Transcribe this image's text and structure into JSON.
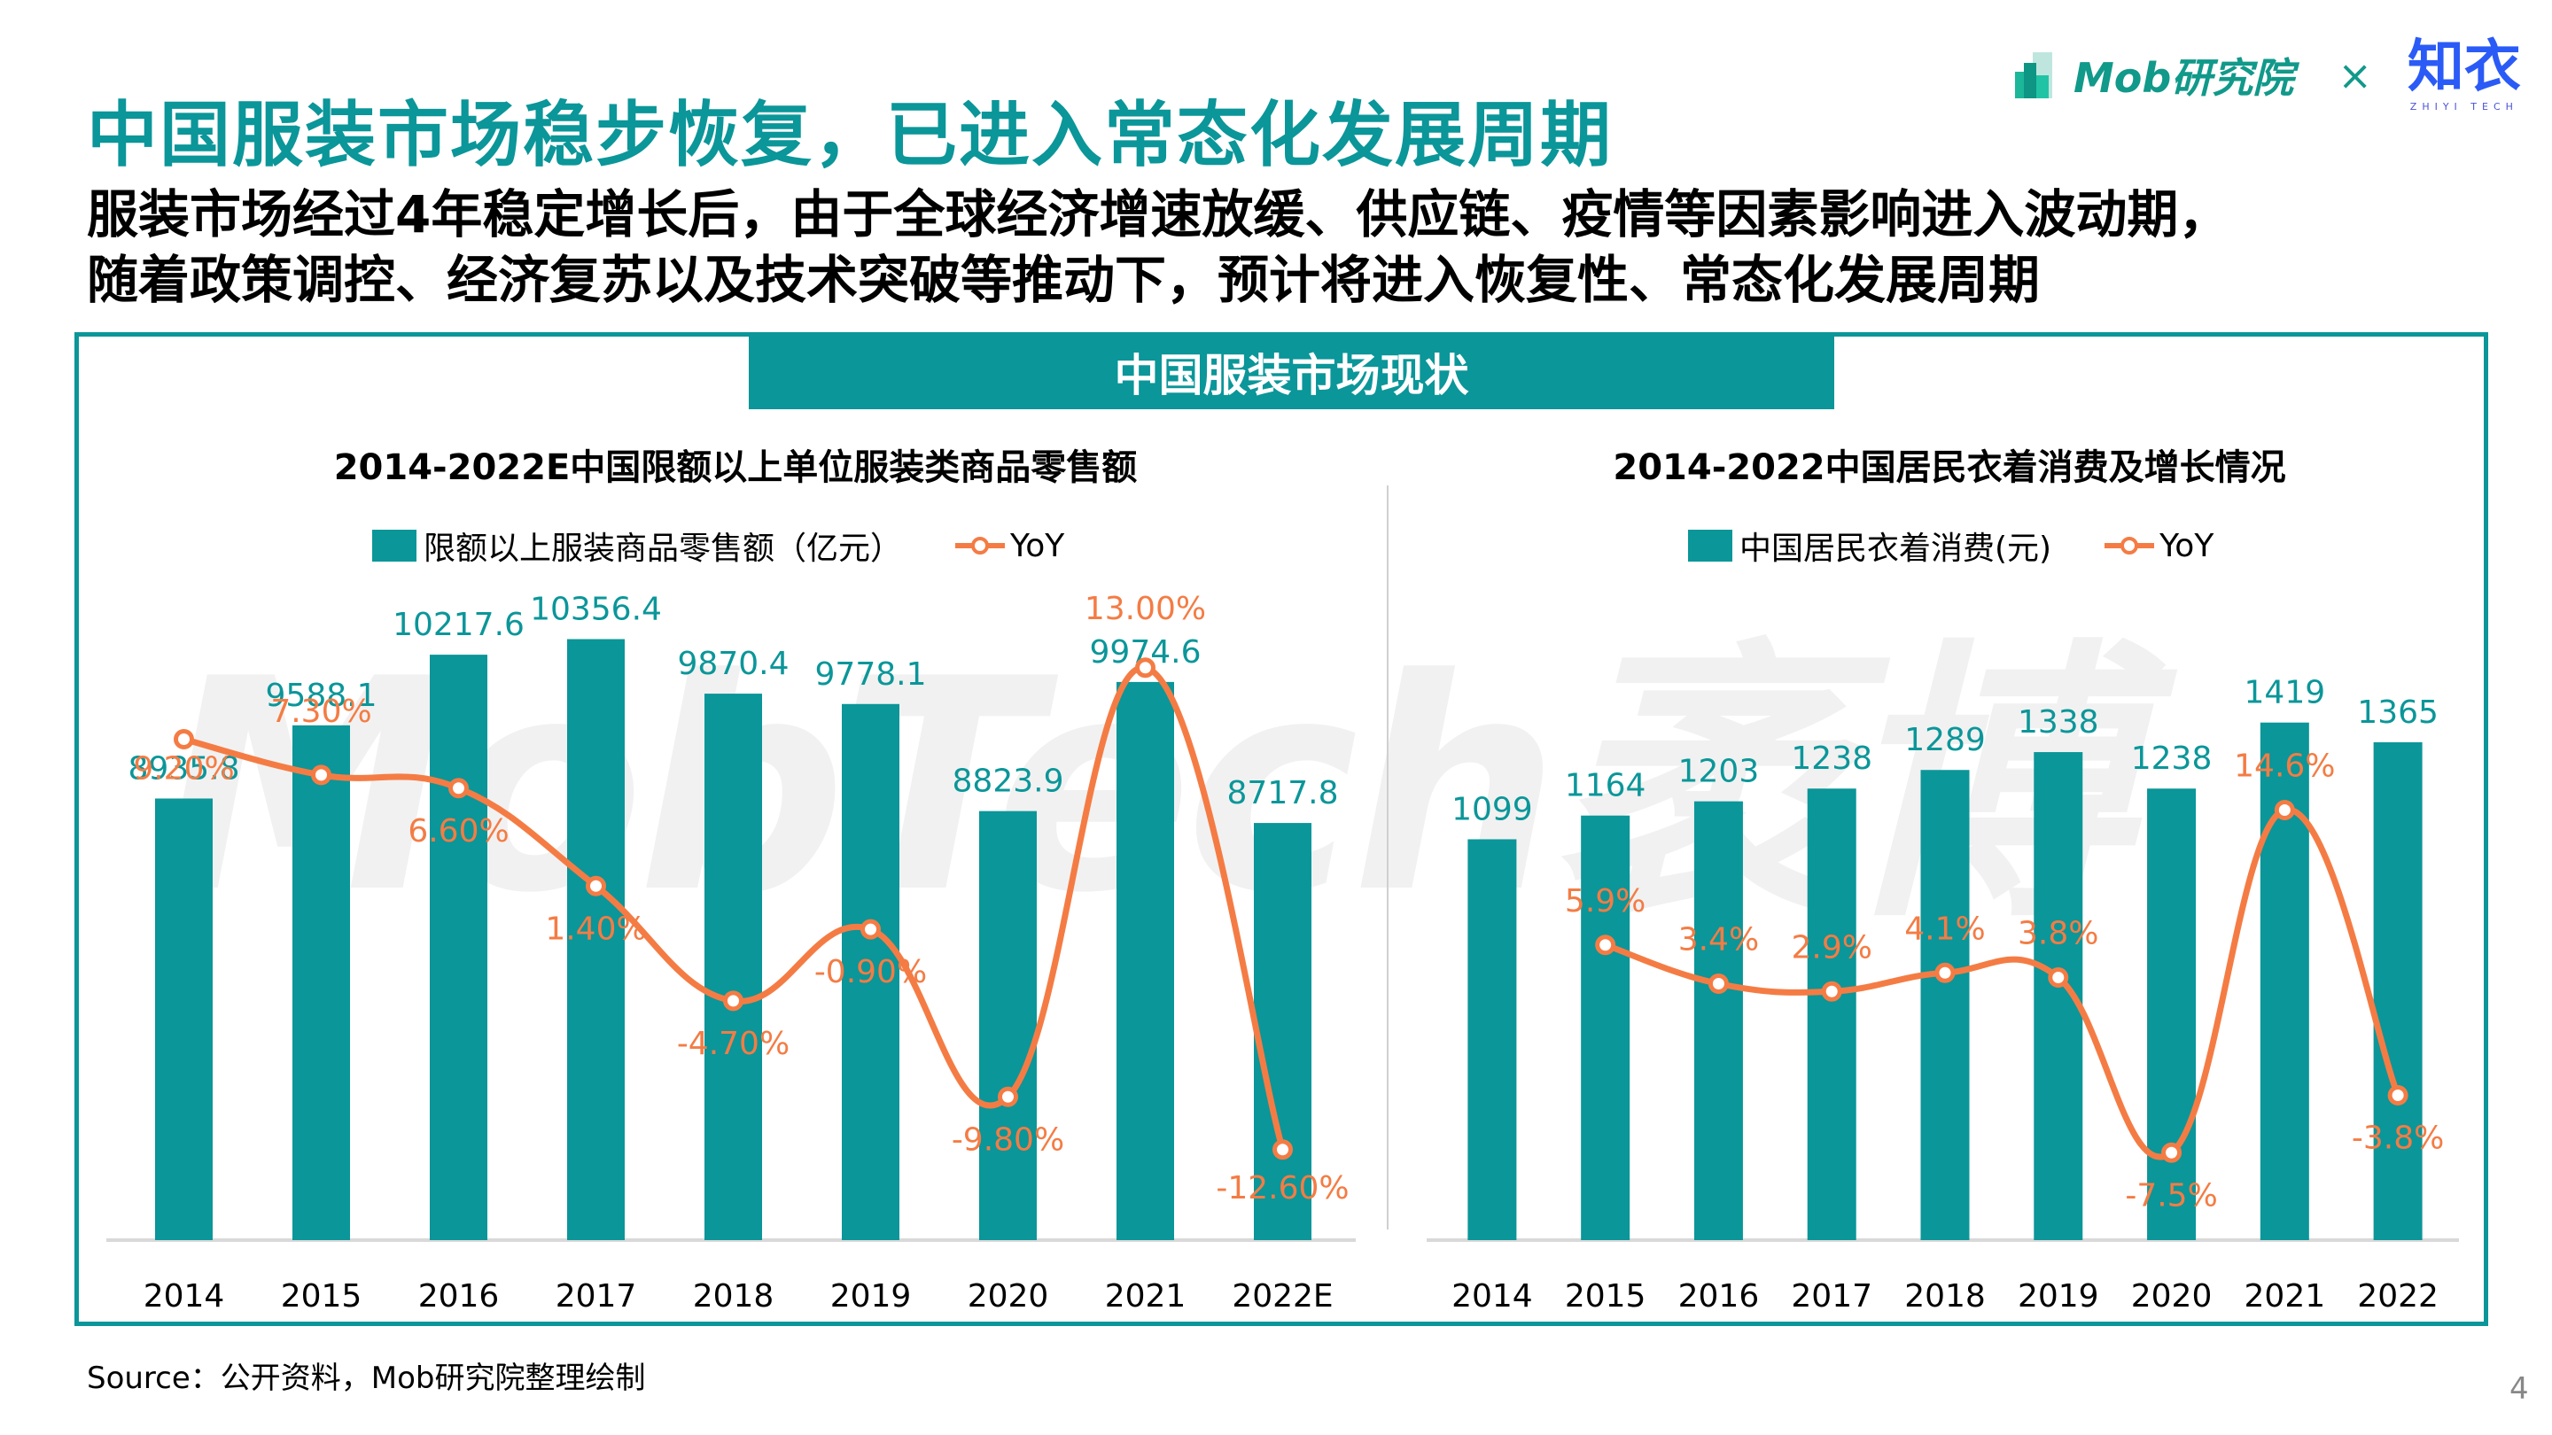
{
  "header": {
    "title": "中国服装市场稳步恢复，已进入常态化发展周期",
    "subtitle_line1": "服装市场经过4年稳定增长后，由于全球经济增速放缓、供应链、疫情等因素影响进入波动期，",
    "subtitle_line2": "随着政策调控、经济复苏以及技术突破等推动下，预计将进入恢复性、常态化发展周期"
  },
  "logos": {
    "mob": "Mob研究院",
    "separator": "×",
    "zhiyi": "知衣",
    "zhiyi_sub": "ZHIYI TECH"
  },
  "section_title": "中国服装市场现状",
  "watermark": "MobTech袤博",
  "colors": {
    "bar": "#0b9699",
    "line": "#f47c44",
    "accent": "#0b9699"
  },
  "chart_data": [
    {
      "type": "bar",
      "title": "2014-2022E中国限额以上单位服装类商品零售额",
      "categories": [
        "2014",
        "2015",
        "2016",
        "2017",
        "2018",
        "2019",
        "2020",
        "2021",
        "2022E"
      ],
      "series": [
        {
          "name": "限额以上服装商品零售额（亿元）",
          "type": "bar",
          "values": [
            8935.8,
            9588.1,
            10217.6,
            10356.4,
            9870.4,
            9778.1,
            8823.9,
            9974.6,
            8717.8
          ],
          "labels": [
            "8935.8",
            "9588.1",
            "10217.6",
            "10356.4",
            "9870.4",
            "9778.1",
            "8823.9",
            "9974.6",
            "8717.8"
          ]
        },
        {
          "name": "YoY",
          "type": "line",
          "values": [
            9.2,
            7.3,
            6.6,
            1.4,
            -4.7,
            -0.9,
            -9.8,
            13.0,
            -12.6
          ],
          "labels": [
            "9.20%",
            "7.30%",
            "6.60%",
            "1.40%",
            "-4.70%",
            "-0.90%",
            "-9.80%",
            "13.00%",
            "-12.60%"
          ]
        }
      ],
      "legend_placement": "top-center",
      "bar_ylim": [
        5000,
        11000
      ],
      "line_ylim": [
        -16,
        16
      ],
      "grid": false
    },
    {
      "type": "bar",
      "title": "2014-2022中国居民衣着消费及增长情况",
      "categories": [
        "2014",
        "2015",
        "2016",
        "2017",
        "2018",
        "2019",
        "2020",
        "2021",
        "2022"
      ],
      "series": [
        {
          "name": "中国居民衣着消费(元)",
          "type": "bar",
          "values": [
            1099,
            1164,
            1203,
            1238,
            1289,
            1338,
            1238,
            1419,
            1365
          ],
          "labels": [
            "1099",
            "1164",
            "1203",
            "1238",
            "1289",
            "1338",
            "1238",
            "1419",
            "1365"
          ]
        },
        {
          "name": "YoY",
          "type": "line",
          "values": [
            null,
            5.9,
            3.4,
            2.9,
            4.1,
            3.8,
            -7.5,
            14.6,
            -3.8
          ],
          "labels": [
            "",
            "5.9%",
            "3.4%",
            "2.9%",
            "4.1%",
            "3.8%",
            "-7.5%",
            "14.6%",
            "-3.8%"
          ]
        }
      ],
      "legend_placement": "top-center",
      "bar_ylim": [
        0,
        1700
      ],
      "line_ylim": [
        -12,
        24
      ],
      "grid": false
    }
  ],
  "footer": {
    "source": "Source：公开资料，Mob研究院整理绘制",
    "page_number": "4"
  }
}
